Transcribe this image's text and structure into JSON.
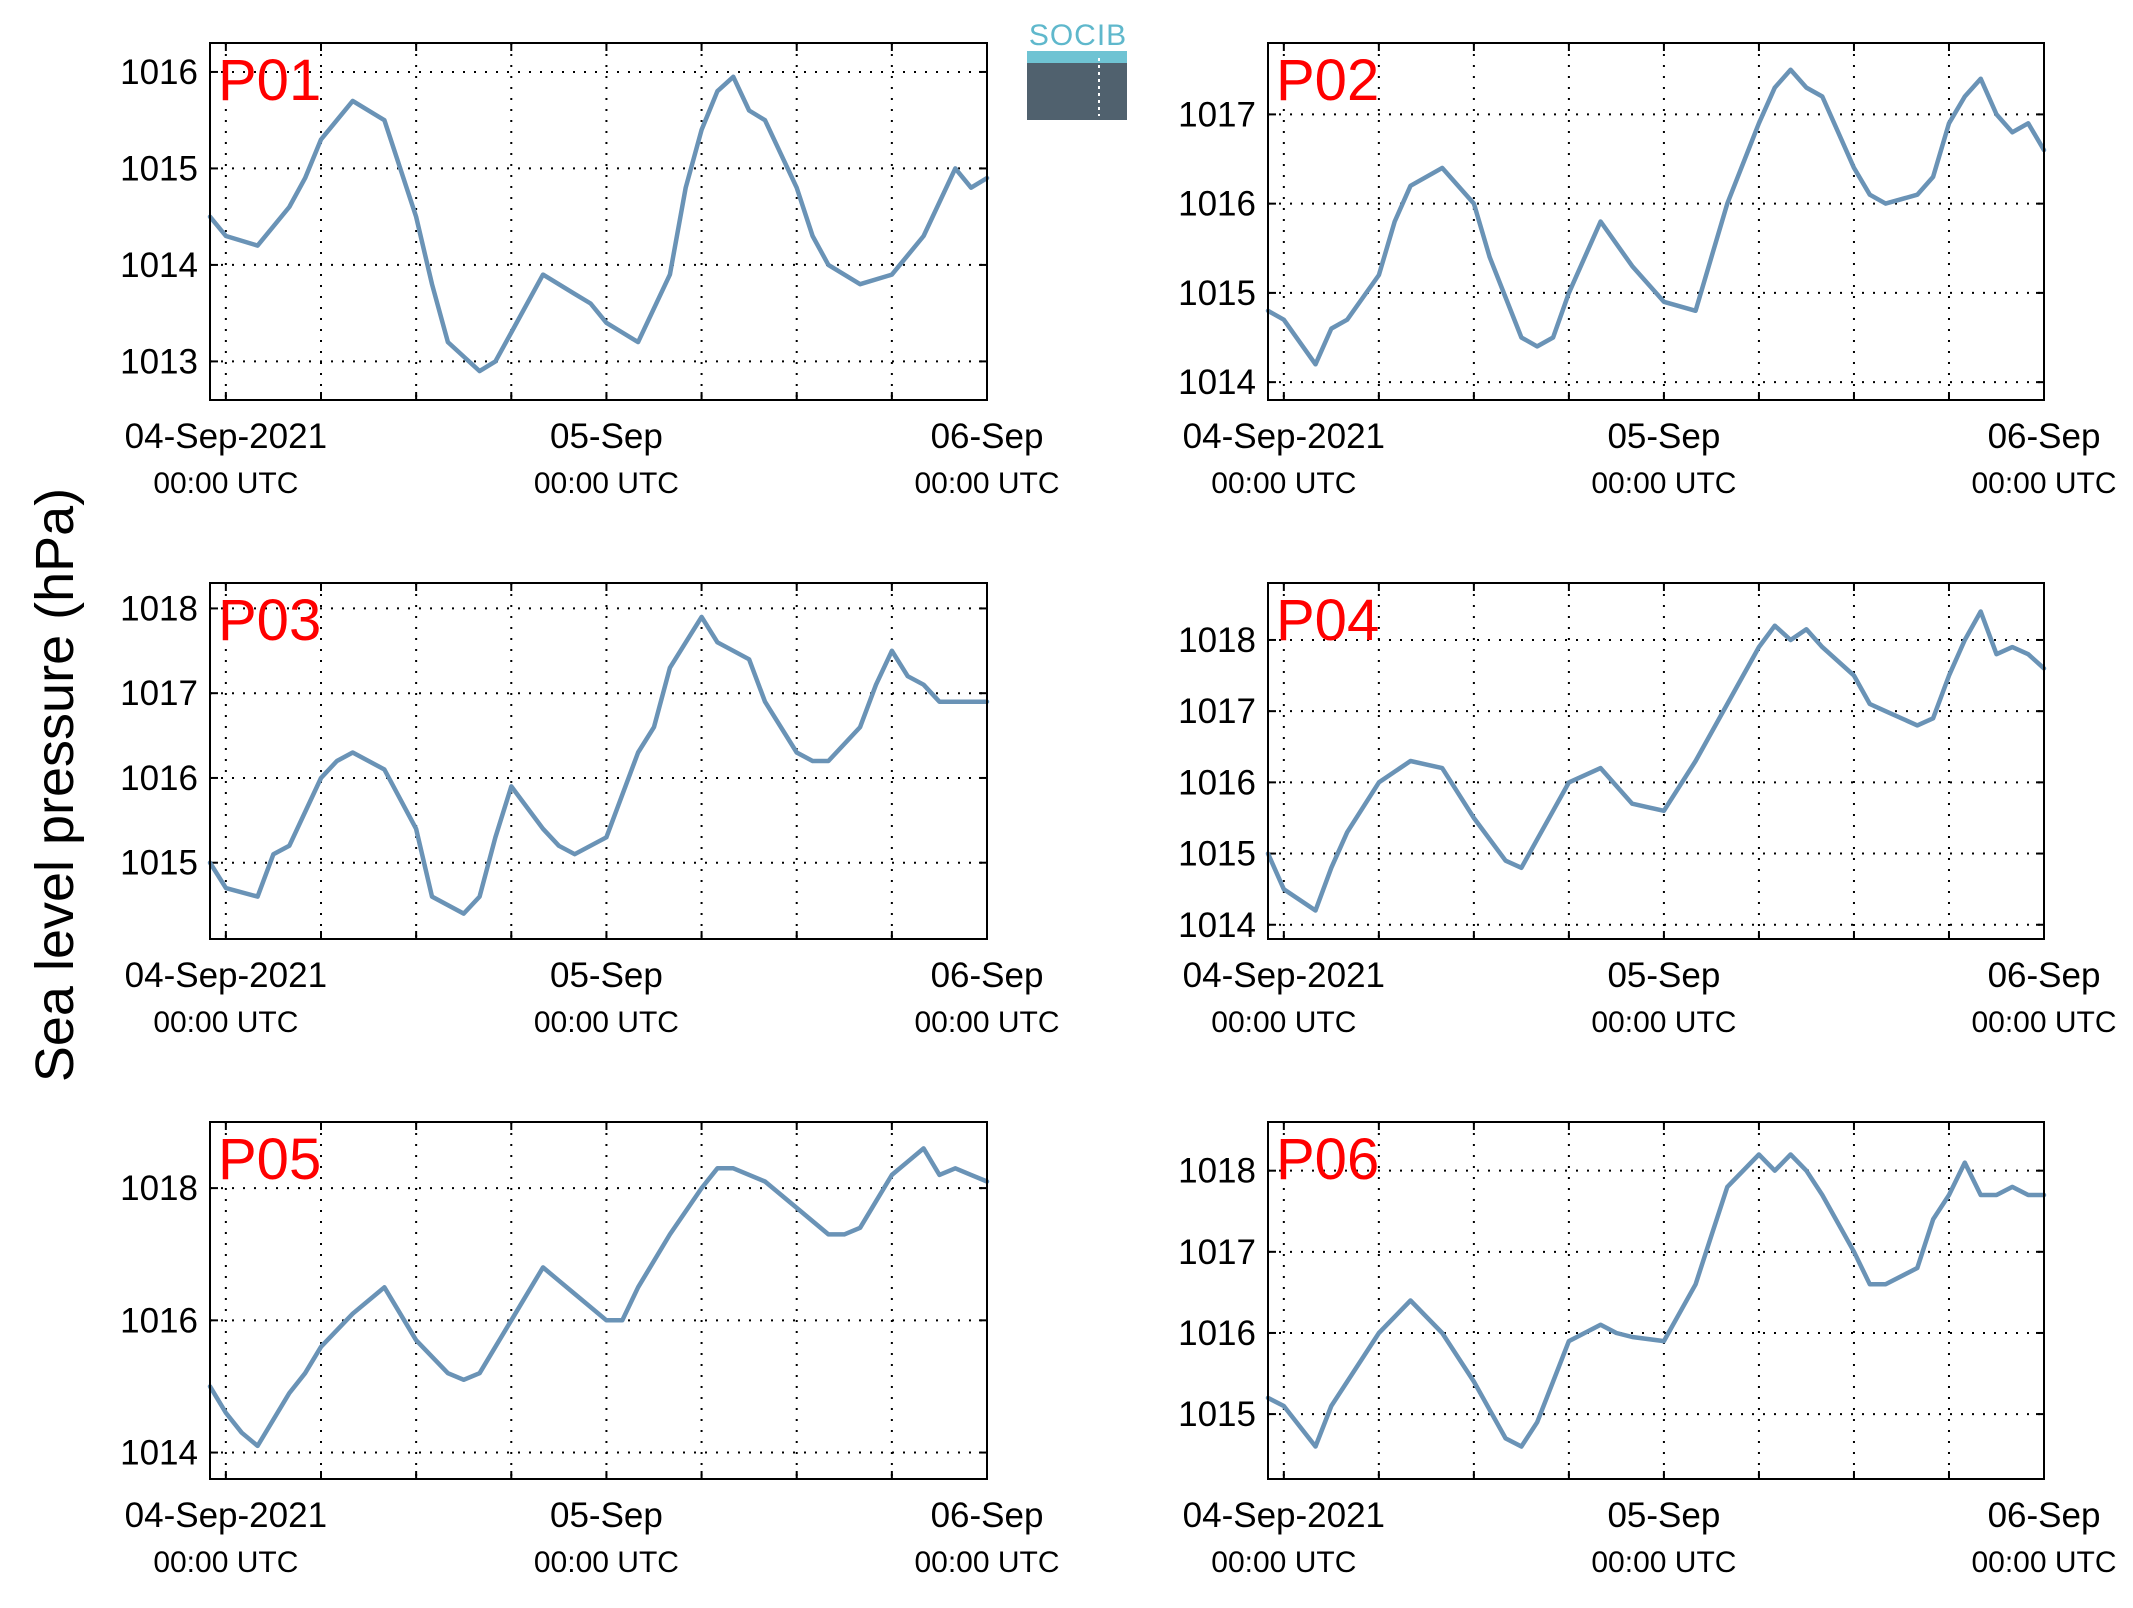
{
  "figure": {
    "ylabel": "Sea level pressure (hPa)",
    "logo_text": "SOCIB",
    "series_color": "#6a93b6",
    "tag_color": "#ff0000",
    "grid": true
  },
  "chart_data": [
    {
      "type": "line",
      "title": "P01",
      "ylim": [
        1012.6,
        1016.3
      ],
      "yticks": [
        1013,
        1014,
        1015,
        1016
      ],
      "xlim": [
        "2021-09-03T23:00Z",
        "2021-09-06T00:00Z"
      ],
      "xticks": [
        {
          "date": "04-Sep-2021",
          "time": "00:00 UTC"
        },
        {
          "date": "05-Sep",
          "time": "00:00 UTC"
        },
        {
          "date": "06-Sep",
          "time": "00:00 UTC"
        }
      ],
      "x_unit": "hours after 2021-09-04 00:00 UTC",
      "x": [
        -1,
        0,
        2,
        4,
        5,
        6,
        8,
        10,
        12,
        13,
        14,
        16,
        17,
        18,
        20,
        22,
        23,
        24,
        25,
        26,
        28,
        29,
        30,
        31,
        32,
        33,
        34,
        36,
        37,
        38,
        40,
        42,
        44,
        46,
        47,
        48
      ],
      "values": [
        1014.5,
        1014.3,
        1014.2,
        1014.6,
        1014.9,
        1015.3,
        1015.7,
        1015.5,
        1014.5,
        1013.8,
        1013.2,
        1012.9,
        1013.0,
        1013.3,
        1013.9,
        1013.7,
        1013.6,
        1013.4,
        1013.3,
        1013.2,
        1013.9,
        1014.8,
        1015.4,
        1015.8,
        1015.95,
        1015.6,
        1015.5,
        1014.8,
        1014.3,
        1014.0,
        1013.8,
        1013.9,
        1014.3,
        1015.0,
        1014.8,
        1014.9
      ]
    },
    {
      "type": "line",
      "title": "P02",
      "ylim": [
        1013.8,
        1017.8
      ],
      "yticks": [
        1014,
        1015,
        1016,
        1017
      ],
      "xlim": [
        "2021-09-03T23:00Z",
        "2021-09-06T00:00Z"
      ],
      "xticks": [
        {
          "date": "04-Sep-2021",
          "time": "00:00 UTC"
        },
        {
          "date": "05-Sep",
          "time": "00:00 UTC"
        },
        {
          "date": "06-Sep",
          "time": "00:00 UTC"
        }
      ],
      "x_unit": "hours after 2021-09-04 00:00 UTC",
      "x": [
        -1,
        0,
        2,
        3,
        4,
        6,
        7,
        8,
        10,
        12,
        13,
        15,
        16,
        17,
        18,
        20,
        22,
        24,
        26,
        27,
        28,
        30,
        31,
        32,
        33,
        34,
        36,
        37,
        38,
        40,
        41,
        42,
        43,
        44,
        45,
        46,
        47,
        48
      ],
      "values": [
        1014.8,
        1014.7,
        1014.2,
        1014.6,
        1014.7,
        1015.2,
        1015.8,
        1016.2,
        1016.4,
        1016.0,
        1015.4,
        1014.5,
        1014.4,
        1014.5,
        1015.0,
        1015.8,
        1015.3,
        1014.9,
        1014.8,
        1015.4,
        1016.0,
        1016.9,
        1017.3,
        1017.5,
        1017.3,
        1017.2,
        1016.4,
        1016.1,
        1016.0,
        1016.1,
        1016.3,
        1016.9,
        1017.2,
        1017.4,
        1017.0,
        1016.8,
        1016.9,
        1016.6
      ]
    },
    {
      "type": "line",
      "title": "P03",
      "ylim": [
        1014.1,
        1018.3
      ],
      "yticks": [
        1015,
        1016,
        1017,
        1018
      ],
      "xlim": [
        "2021-09-03T23:00Z",
        "2021-09-06T00:00Z"
      ],
      "xticks": [
        {
          "date": "04-Sep-2021",
          "time": "00:00 UTC"
        },
        {
          "date": "05-Sep",
          "time": "00:00 UTC"
        },
        {
          "date": "06-Sep",
          "time": "00:00 UTC"
        }
      ],
      "x_unit": "hours after 2021-09-04 00:00 UTC",
      "x": [
        -1,
        0,
        2,
        3,
        4,
        6,
        7,
        8,
        10,
        12,
        13,
        15,
        16,
        17,
        18,
        20,
        21,
        22,
        24,
        26,
        27,
        28,
        30,
        31,
        32,
        33,
        34,
        36,
        37,
        38,
        40,
        41,
        42,
        43,
        44,
        45,
        46,
        47,
        48
      ],
      "values": [
        1015.0,
        1014.7,
        1014.6,
        1015.1,
        1015.2,
        1016.0,
        1016.2,
        1016.3,
        1016.1,
        1015.4,
        1014.6,
        1014.4,
        1014.6,
        1015.3,
        1015.9,
        1015.4,
        1015.2,
        1015.1,
        1015.3,
        1016.3,
        1016.6,
        1017.3,
        1017.9,
        1017.6,
        1017.5,
        1017.4,
        1016.9,
        1016.3,
        1016.2,
        1016.2,
        1016.6,
        1017.1,
        1017.5,
        1017.2,
        1017.1,
        1016.9,
        1016.9,
        1016.9,
        1016.9
      ]
    },
    {
      "type": "line",
      "title": "P04",
      "ylim": [
        1013.8,
        1018.8
      ],
      "yticks": [
        1014,
        1015,
        1016,
        1017,
        1018
      ],
      "xlim": [
        "2021-09-03T23:00Z",
        "2021-09-06T00:00Z"
      ],
      "xticks": [
        {
          "date": "04-Sep-2021",
          "time": "00:00 UTC"
        },
        {
          "date": "05-Sep",
          "time": "00:00 UTC"
        },
        {
          "date": "06-Sep",
          "time": "00:00 UTC"
        }
      ],
      "x_unit": "hours after 2021-09-04 00:00 UTC",
      "x": [
        -1,
        0,
        2,
        3,
        4,
        6,
        8,
        10,
        12,
        14,
        15,
        16,
        17,
        18,
        20,
        22,
        24,
        26,
        28,
        30,
        31,
        32,
        33,
        34,
        36,
        37,
        38,
        40,
        41,
        42,
        43,
        44,
        45,
        46,
        47,
        48
      ],
      "values": [
        1015.0,
        1014.5,
        1014.2,
        1014.8,
        1015.3,
        1016.0,
        1016.3,
        1016.2,
        1015.5,
        1014.9,
        1014.8,
        1015.2,
        1015.6,
        1016.0,
        1016.2,
        1015.7,
        1015.6,
        1016.3,
        1017.1,
        1017.9,
        1018.2,
        1018.0,
        1018.15,
        1017.9,
        1017.5,
        1017.1,
        1017.0,
        1016.8,
        1016.9,
        1017.5,
        1018.0,
        1018.4,
        1017.8,
        1017.9,
        1017.8,
        1017.6
      ]
    },
    {
      "type": "line",
      "title": "P05",
      "ylim": [
        1013.6,
        1019.0
      ],
      "yticks": [
        1014,
        1016,
        1018
      ],
      "xlim": [
        "2021-09-03T23:00Z",
        "2021-09-06T00:00Z"
      ],
      "xticks": [
        {
          "date": "04-Sep-2021",
          "time": "00:00 UTC"
        },
        {
          "date": "05-Sep",
          "time": "00:00 UTC"
        },
        {
          "date": "06-Sep",
          "time": "00:00 UTC"
        }
      ],
      "x_unit": "hours after 2021-09-04 00:00 UTC",
      "x": [
        -1,
        0,
        1,
        2,
        4,
        5,
        6,
        8,
        10,
        12,
        14,
        15,
        16,
        17,
        18,
        20,
        21,
        22,
        24,
        25,
        26,
        28,
        30,
        31,
        32,
        34,
        36,
        38,
        39,
        40,
        41,
        42,
        43,
        44,
        45,
        46,
        47,
        48
      ],
      "values": [
        1015.0,
        1014.6,
        1014.3,
        1014.1,
        1014.9,
        1015.2,
        1015.6,
        1016.1,
        1016.5,
        1015.7,
        1015.2,
        1015.1,
        1015.2,
        1015.6,
        1016.0,
        1016.8,
        1016.6,
        1016.4,
        1016.0,
        1016.0,
        1016.5,
        1017.3,
        1018.0,
        1018.3,
        1018.3,
        1018.1,
        1017.7,
        1017.3,
        1017.3,
        1017.4,
        1017.8,
        1018.2,
        1018.4,
        1018.6,
        1018.2,
        1018.3,
        1018.2,
        1018.1
      ]
    },
    {
      "type": "line",
      "title": "P06",
      "ylim": [
        1014.2,
        1018.6
      ],
      "yticks": [
        1015,
        1016,
        1017,
        1018
      ],
      "xlim": [
        "2021-09-03T23:00Z",
        "2021-09-06T00:00Z"
      ],
      "xticks": [
        {
          "date": "04-Sep-2021",
          "time": "00:00 UTC"
        },
        {
          "date": "05-Sep",
          "time": "00:00 UTC"
        },
        {
          "date": "06-Sep",
          "time": "00:00 UTC"
        }
      ],
      "x_unit": "hours after 2021-09-04 00:00 UTC",
      "x": [
        -1,
        0,
        2,
        3,
        4,
        6,
        8,
        10,
        12,
        14,
        15,
        16,
        17,
        18,
        20,
        21,
        22,
        24,
        26,
        27,
        28,
        30,
        31,
        32,
        33,
        34,
        36,
        37,
        38,
        40,
        41,
        42,
        43,
        44,
        45,
        46,
        47,
        48
      ],
      "values": [
        1015.2,
        1015.1,
        1014.6,
        1015.1,
        1015.4,
        1016.0,
        1016.4,
        1016.0,
        1015.4,
        1014.7,
        1014.6,
        1014.9,
        1015.4,
        1015.9,
        1016.1,
        1016.0,
        1015.95,
        1015.9,
        1016.6,
        1017.2,
        1017.8,
        1018.2,
        1018.0,
        1018.2,
        1018.0,
        1017.7,
        1017.0,
        1016.6,
        1016.6,
        1016.8,
        1017.4,
        1017.7,
        1018.1,
        1017.7,
        1017.7,
        1017.8,
        1017.7,
        1017.7
      ]
    }
  ]
}
